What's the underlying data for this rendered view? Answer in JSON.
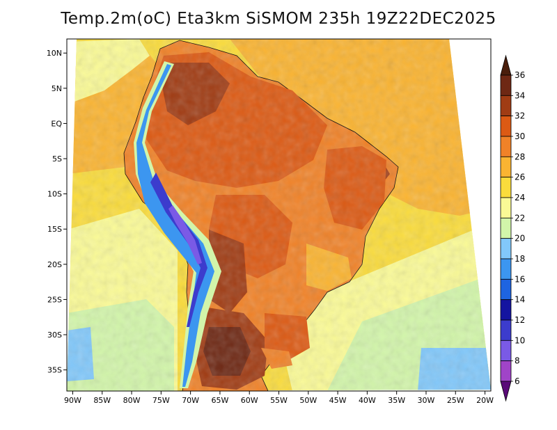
{
  "title": "Temp.2m(oC) Eta3km SiSMOM 235h 19Z22DEC2025",
  "map": {
    "lon_range": [
      -91,
      -19
    ],
    "lat_range": [
      -38,
      12
    ],
    "lat_ticks": [
      {
        "value": 10,
        "label": "10N"
      },
      {
        "value": 5,
        "label": "5N"
      },
      {
        "value": 0,
        "label": "EQ"
      },
      {
        "value": -5,
        "label": "5S"
      },
      {
        "value": -10,
        "label": "10S"
      },
      {
        "value": -15,
        "label": "15S"
      },
      {
        "value": -20,
        "label": "20S"
      },
      {
        "value": -25,
        "label": "25S"
      },
      {
        "value": -30,
        "label": "30S"
      },
      {
        "value": -35,
        "label": "35S"
      }
    ],
    "lon_ticks": [
      {
        "value": -90,
        "label": "90W"
      },
      {
        "value": -85,
        "label": "85W"
      },
      {
        "value": -80,
        "label": "80W"
      },
      {
        "value": -75,
        "label": "75W"
      },
      {
        "value": -70,
        "label": "70W"
      },
      {
        "value": -65,
        "label": "65W"
      },
      {
        "value": -60,
        "label": "60W"
      },
      {
        "value": -55,
        "label": "55W"
      },
      {
        "value": -50,
        "label": "50W"
      },
      {
        "value": -45,
        "label": "45W"
      },
      {
        "value": -40,
        "label": "40W"
      },
      {
        "value": -35,
        "label": "35W"
      },
      {
        "value": -30,
        "label": "30W"
      },
      {
        "value": -25,
        "label": "25W"
      },
      {
        "value": -20,
        "label": "20W"
      }
    ]
  },
  "colorbar": {
    "levels": [
      6,
      8,
      10,
      12,
      14,
      16,
      18,
      20,
      22,
      24,
      26,
      28,
      30,
      32,
      34,
      36
    ],
    "colors": [
      "#7a1e96",
      "#a044c8",
      "#7a5ae6",
      "#3c3ccd",
      "#1414a0",
      "#1e64e1",
      "#3c96f0",
      "#82c8fa",
      "#d2f5aa",
      "#fafa96",
      "#fadc3c",
      "#fab432",
      "#f08228",
      "#dc5a14",
      "#a03c14",
      "#6e2814"
    ],
    "min_color": "#5a0a78",
    "max_color": "#4a1e0c"
  }
}
